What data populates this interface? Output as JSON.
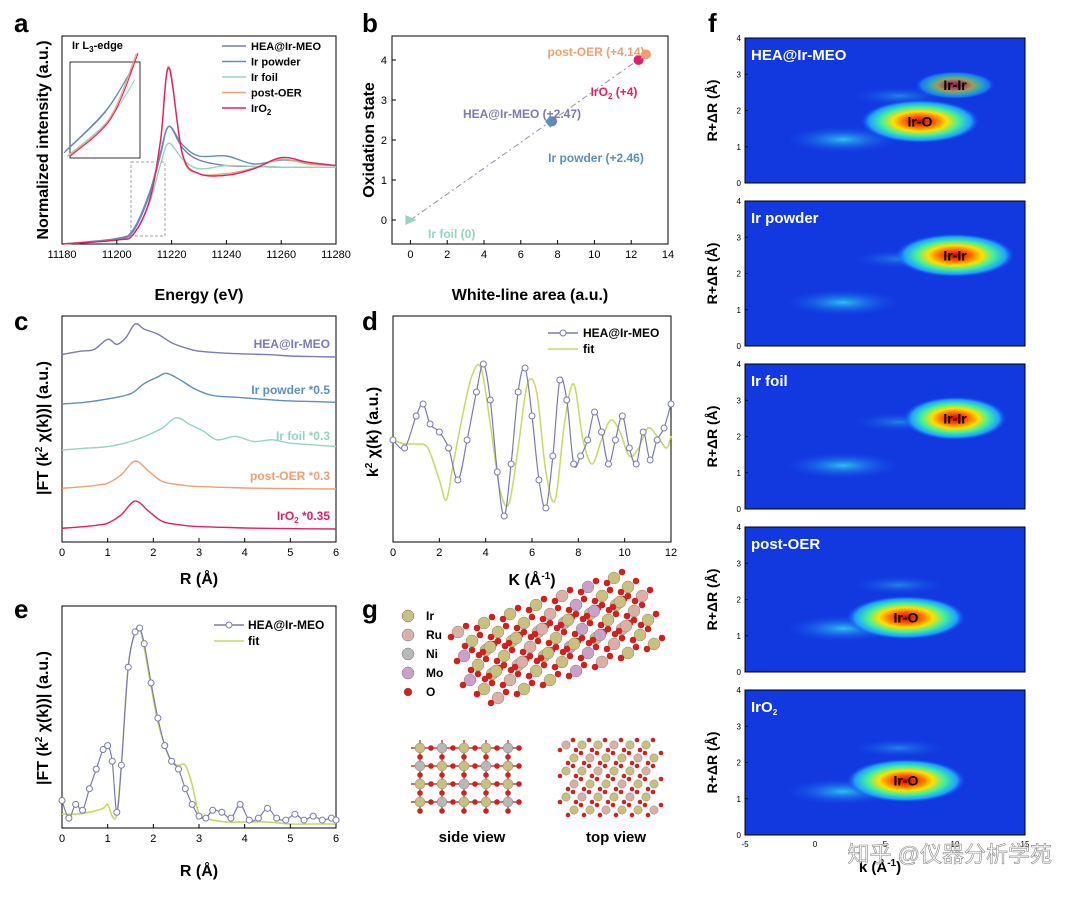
{
  "panel_letters": [
    "a",
    "b",
    "c",
    "d",
    "e",
    "f",
    "g"
  ],
  "watermark": "知乎 @仪器分析学苑",
  "chart_data": [
    {
      "id": "a",
      "type": "line",
      "xlabel": "Energy (eV)",
      "ylabel": "Normalized intensity (a.u.)",
      "xlim": [
        11180,
        11280
      ],
      "xticks": [
        11180,
        11200,
        11220,
        11240,
        11260,
        11280
      ],
      "inset_label_main": "Ir L",
      "inset_label_sub": "3",
      "inset_label_tail": "-edge",
      "legend": [
        "HEA@Ir-MEO",
        "Ir powder",
        "Ir foil",
        "post-OER",
        "IrO2"
      ],
      "legend_display": [
        {
          "main": "HEA@Ir-MEO",
          "sub": ""
        },
        {
          "main": "Ir powder",
          "sub": ""
        },
        {
          "main": "Ir foil",
          "sub": ""
        },
        {
          "main": "post-OER",
          "sub": ""
        },
        {
          "main": "IrO",
          "sub": "2"
        }
      ],
      "series": [
        {
          "name": "HEA@Ir-MEO",
          "color": "#7a7ab8",
          "peak": 1.47,
          "x": [
            11180,
            11200,
            11206,
            11212,
            11216,
            11219,
            11224,
            11230,
            11240,
            11250,
            11260,
            11270,
            11280
          ],
          "y": [
            0.0,
            0.06,
            0.16,
            0.62,
            1.12,
            1.47,
            1.2,
            1.05,
            0.98,
            0.97,
            0.96,
            0.96,
            0.96
          ]
        },
        {
          "name": "Ir powder",
          "color": "#5b8fc0",
          "x": [
            11180,
            11200,
            11206,
            11212,
            11216,
            11219,
            11224,
            11230,
            11240,
            11250,
            11260,
            11270,
            11280
          ],
          "y": [
            0.0,
            0.07,
            0.18,
            0.65,
            1.15,
            1.47,
            1.24,
            1.1,
            1.1,
            1.0,
            1.05,
            1.02,
            0.98
          ]
        },
        {
          "name": "Ir foil",
          "color": "#93d5be",
          "x": [
            11180,
            11200,
            11206,
            11212,
            11216,
            11219,
            11224,
            11230,
            11240,
            11250,
            11260,
            11270,
            11280
          ],
          "y": [
            0.0,
            0.05,
            0.12,
            0.52,
            1.0,
            1.26,
            1.06,
            0.94,
            0.98,
            0.97,
            0.96,
            0.96,
            0.96
          ]
        },
        {
          "name": "post-OER",
          "color": "#f0a070",
          "x": [
            11180,
            11200,
            11206,
            11212,
            11216,
            11219,
            11224,
            11230,
            11240,
            11250,
            11260,
            11270,
            11280
          ],
          "y": [
            0.0,
            0.05,
            0.12,
            0.55,
            1.3,
            2.22,
            1.1,
            0.88,
            0.88,
            0.95,
            1.06,
            1.0,
            0.98
          ]
        },
        {
          "name": "IrO2",
          "color": "#e0206a",
          "x": [
            11180,
            11200,
            11206,
            11212,
            11216,
            11219,
            11224,
            11230,
            11240,
            11250,
            11260,
            11270,
            11280
          ],
          "y": [
            0.0,
            0.05,
            0.12,
            0.55,
            1.3,
            2.2,
            1.12,
            0.88,
            0.86,
            0.94,
            1.08,
            1.02,
            0.98
          ]
        }
      ]
    },
    {
      "id": "b",
      "type": "scatter",
      "xlabel": "White-line area (a.u.)",
      "ylabel": "Oxidation state",
      "xlim": [
        -1,
        14
      ],
      "ylim": [
        -0.6,
        4.6
      ],
      "xticks": [
        0,
        2,
        4,
        6,
        8,
        10,
        12,
        14
      ],
      "yticks": [
        0,
        1,
        2,
        3,
        4
      ],
      "points": [
        {
          "label": "Ir foil (0)",
          "x": 0.0,
          "y": 0.0,
          "color": "#93d5be",
          "marker": "triangle"
        },
        {
          "label": "HEA@Ir-MEO (+2.47)",
          "x": 7.7,
          "y": 2.47,
          "color": "#7a7ab8",
          "marker": "circle"
        },
        {
          "label": "Ir powder (+2.46)",
          "x": 7.6,
          "y": 2.46,
          "color": "#5b8fc0",
          "marker": "diamond"
        },
        {
          "label": "IrO2 (+4)",
          "x": 12.4,
          "y": 4.0,
          "color": "#e0206a",
          "marker": "circle"
        },
        {
          "label": "post-OER (+4.14)",
          "x": 12.8,
          "y": 4.14,
          "color": "#f0a070",
          "marker": "circle"
        }
      ],
      "fit_line": {
        "x": [
          0,
          12.8
        ],
        "y": [
          0,
          4.14
        ]
      },
      "label_display": [
        {
          "main": "Ir foil (0)",
          "sub": "",
          "tail": ""
        },
        {
          "main": "HEA@Ir-MEO (+2.47)",
          "sub": "",
          "tail": ""
        },
        {
          "main": "Ir powder (+2.46)",
          "sub": "",
          "tail": ""
        },
        {
          "main": "IrO",
          "sub": "2",
          "tail": " (+4)"
        },
        {
          "main": "post-OER (+4.14)",
          "sub": "",
          "tail": ""
        }
      ]
    },
    {
      "id": "c",
      "type": "line",
      "xlabel": "R (Å)",
      "ylabel": "|FT (k2 χ(k))| (a.u.)",
      "ylabel_display": {
        "pre": "|FT (k",
        "sup": "2",
        "post": " χ(k))| (a.u.)"
      },
      "xlim": [
        0,
        6
      ],
      "xticks": [
        0,
        1,
        2,
        3,
        4,
        5,
        6
      ],
      "series": [
        {
          "name": "HEA@Ir-MEO",
          "color": "#7a7ab8",
          "offset": 4,
          "x": [
            0,
            0.4,
            0.7,
            1.0,
            1.2,
            1.4,
            1.6,
            1.8,
            2.1,
            2.4,
            2.7,
            3.0,
            3.5,
            4.0,
            4.5,
            5.0,
            5.5,
            6.0
          ],
          "y": [
            0.1,
            0.2,
            0.25,
            0.55,
            0.4,
            0.6,
            1.0,
            0.85,
            0.7,
            0.45,
            0.3,
            0.2,
            0.15,
            0.12,
            0.1,
            0.06,
            0.04,
            0.03
          ]
        },
        {
          "name": "Ir powder *0.5",
          "color": "#5b8fc0",
          "offset": 3,
          "x": [
            0,
            0.5,
            1.0,
            1.5,
            1.8,
            2.1,
            2.3,
            2.6,
            2.9,
            3.3,
            3.8,
            4.3,
            4.8,
            5.3,
            6.0
          ],
          "y": [
            0.0,
            0.05,
            0.15,
            0.3,
            0.6,
            0.8,
            0.9,
            0.7,
            0.45,
            0.25,
            0.2,
            0.15,
            0.1,
            0.08,
            0.05
          ]
        },
        {
          "name": "Ir foil *0.3",
          "color": "#93d5be",
          "offset": 2,
          "x": [
            0,
            0.5,
            1.0,
            1.5,
            1.9,
            2.2,
            2.5,
            2.8,
            3.1,
            3.4,
            3.8,
            4.2,
            4.6,
            5.0,
            5.5,
            6.0
          ],
          "y": [
            0.0,
            0.05,
            0.1,
            0.25,
            0.45,
            0.65,
            0.95,
            0.75,
            0.55,
            0.3,
            0.4,
            0.25,
            0.3,
            0.2,
            0.15,
            0.1
          ]
        },
        {
          "name": "post-OER *0.3",
          "color": "#f0a070",
          "offset": 1,
          "x": [
            0,
            0.5,
            0.8,
            1.0,
            1.3,
            1.6,
            1.9,
            2.2,
            2.6,
            3.0,
            3.5,
            4.0,
            5.0,
            6.0
          ],
          "y": [
            0.05,
            0.1,
            0.15,
            0.2,
            0.45,
            0.85,
            0.55,
            0.25,
            0.15,
            0.1,
            0.08,
            0.06,
            0.04,
            0.03
          ]
        },
        {
          "name": "IrO2 *0.35",
          "color": "#e0206a",
          "offset": 0,
          "x": [
            0,
            0.5,
            0.8,
            1.0,
            1.3,
            1.6,
            1.9,
            2.2,
            2.6,
            3.0,
            3.5,
            4.0,
            5.0,
            6.0
          ],
          "y": [
            0.05,
            0.1,
            0.15,
            0.2,
            0.45,
            0.85,
            0.55,
            0.25,
            0.15,
            0.1,
            0.08,
            0.06,
            0.04,
            0.03
          ]
        }
      ],
      "labels_display": [
        {
          "main": "HEA@Ir-MEO",
          "sub": "",
          "tail": ""
        },
        {
          "main": "Ir powder *0.5",
          "sub": "",
          "tail": ""
        },
        {
          "main": "Ir foil *0.3",
          "sub": "",
          "tail": ""
        },
        {
          "main": "post-OER *0.3",
          "sub": "",
          "tail": ""
        },
        {
          "main": "IrO",
          "sub": "2",
          "tail": " *0.35"
        }
      ]
    },
    {
      "id": "d",
      "type": "line",
      "xlabel": "K (Å-1)",
      "ylabel": "k2 χ(k) (a.u.)",
      "xlabel_display": {
        "pre": "K (Å",
        "sup": "-1",
        "post": ")"
      },
      "ylabel_display": {
        "pre": "k",
        "sup": "2",
        "post": " χ(k) (a.u.)"
      },
      "xlim": [
        0,
        12
      ],
      "xticks": [
        0,
        2,
        4,
        6,
        8,
        10,
        12
      ],
      "legend": [
        "HEA@Ir-MEO",
        "fit"
      ],
      "series": [
        {
          "name": "HEA@Ir-MEO",
          "color": "#7a7ab8",
          "marker": "open-circle",
          "x": [
            0,
            0.5,
            1.0,
            1.3,
            1.6,
            2.0,
            2.4,
            2.8,
            3.2,
            3.6,
            3.9,
            4.2,
            4.5,
            4.8,
            5.1,
            5.4,
            5.7,
            6.0,
            6.3,
            6.6,
            6.9,
            7.2,
            7.5,
            7.8,
            8.1,
            8.4,
            8.7,
            9.0,
            9.3,
            9.6,
            9.9,
            10.2,
            10.5,
            10.8,
            11.1,
            11.4,
            11.7,
            12.0
          ],
          "y": [
            0.0,
            -0.1,
            0.3,
            0.45,
            0.2,
            0.1,
            -0.1,
            -0.5,
            0.0,
            0.6,
            0.95,
            0.5,
            -0.4,
            -0.95,
            -0.3,
            0.6,
            0.9,
            0.3,
            -0.5,
            -0.85,
            -0.2,
            0.75,
            0.5,
            -0.3,
            -0.2,
            0.0,
            0.35,
            0.1,
            -0.3,
            0.0,
            0.3,
            -0.1,
            -0.3,
            0.1,
            -0.25,
            0.0,
            0.15,
            0.45
          ]
        },
        {
          "name": "fit",
          "color": "#c8d860",
          "x": [
            0,
            0.5,
            1.0,
            1.5,
            2.0,
            2.3,
            2.6,
            3.0,
            3.4,
            3.8,
            4.2,
            4.6,
            5.0,
            5.4,
            5.8,
            6.2,
            6.6,
            7.0,
            7.4,
            7.8,
            8.2,
            8.6,
            9.0,
            9.4,
            9.8,
            10.2,
            10.6,
            11.0,
            11.4,
            11.8,
            12.0
          ],
          "y": [
            0.0,
            -0.05,
            -0.05,
            -0.1,
            -0.5,
            -0.75,
            -0.3,
            0.3,
            0.8,
            0.9,
            0.2,
            -0.6,
            -0.8,
            -0.1,
            0.7,
            0.6,
            -0.4,
            -0.75,
            0.2,
            0.7,
            0.0,
            -0.3,
            0.0,
            0.25,
            0.1,
            -0.2,
            -0.1,
            0.15,
            0.05,
            -0.1,
            0.05
          ]
        }
      ]
    },
    {
      "id": "e",
      "type": "line",
      "xlabel": "R (Å)",
      "ylabel": "|FT (k2 χ(k))| (a.u.)",
      "ylabel_display": {
        "pre": "|FT (k",
        "sup": "2",
        "post": " χ(k))| (a.u.)"
      },
      "xlim": [
        0,
        6
      ],
      "xticks": [
        0,
        1,
        2,
        3,
        4,
        5,
        6
      ],
      "legend": [
        "HEA@Ir-MEO",
        "fit"
      ],
      "series": [
        {
          "name": "HEA@Ir-MEO",
          "color": "#7a7ab8",
          "marker": "open-circle",
          "x": [
            0,
            0.15,
            0.3,
            0.45,
            0.6,
            0.75,
            0.9,
            1.0,
            1.1,
            1.2,
            1.3,
            1.45,
            1.6,
            1.7,
            1.8,
            1.95,
            2.1,
            2.25,
            2.4,
            2.55,
            2.7,
            2.85,
            3.0,
            3.15,
            3.3,
            3.5,
            3.7,
            3.9,
            4.1,
            4.3,
            4.5,
            4.7,
            4.9,
            5.1,
            5.3,
            5.5,
            5.7,
            5.9,
            6.0
          ],
          "y": [
            0.12,
            0.03,
            0.1,
            0.07,
            0.18,
            0.28,
            0.38,
            0.4,
            0.32,
            0.06,
            0.3,
            0.8,
            0.98,
            1.0,
            0.92,
            0.72,
            0.54,
            0.4,
            0.32,
            0.28,
            0.18,
            0.1,
            0.04,
            0.03,
            0.07,
            0.06,
            0.03,
            0.1,
            0.02,
            0.03,
            0.08,
            0.03,
            0.02,
            0.05,
            0.02,
            0.04,
            0.02,
            0.03,
            0.02
          ]
        },
        {
          "name": "fit",
          "color": "#c8d860",
          "x": [
            0,
            0.3,
            0.6,
            0.9,
            1.0,
            1.1,
            1.2,
            1.3,
            1.45,
            1.6,
            1.7,
            1.8,
            1.95,
            2.1,
            2.25,
            2.4,
            2.55,
            2.7,
            2.85,
            3.0,
            3.15,
            3.3,
            3.6,
            4.0,
            4.5,
            5.0,
            5.5,
            6.0
          ],
          "y": [
            0.05,
            0.05,
            0.06,
            0.08,
            0.1,
            0.04,
            0.05,
            0.3,
            0.8,
            0.98,
            1.0,
            0.9,
            0.7,
            0.52,
            0.4,
            0.32,
            0.3,
            0.3,
            0.2,
            0.05,
            0.03,
            0.02,
            0.01,
            0.01,
            0.01,
            0.0,
            0.0,
            0.0
          ]
        }
      ]
    },
    {
      "id": "f",
      "type": "heatmap",
      "xlabel": "k (Å-1)",
      "ylabel": "R+ΔR (Å)",
      "xlabel_display": {
        "pre": "k (Å",
        "sup": "-1",
        "post": ")"
      },
      "xlim": [
        -5,
        15
      ],
      "xticks": [
        -5,
        0,
        5,
        10,
        15
      ],
      "ylim": [
        0,
        4
      ],
      "yticks": [
        0,
        1,
        2,
        3,
        4
      ],
      "maps": [
        {
          "title": "HEA@Ir-MEO",
          "title_sub": "",
          "annotations": [
            {
              "text": "Ir-O",
              "k": 7.5,
              "r": 1.7
            },
            {
              "text": "Ir-Ir",
              "k": 10.0,
              "r": 2.7
            }
          ]
        },
        {
          "title": "Ir powder",
          "title_sub": "",
          "annotations": [
            {
              "text": "Ir-Ir",
              "k": 10.0,
              "r": 2.5
            }
          ]
        },
        {
          "title": "Ir foil",
          "title_sub": "",
          "annotations": [
            {
              "text": "Ir-Ir",
              "k": 10.0,
              "r": 2.5
            }
          ]
        },
        {
          "title": "post-OER",
          "title_sub": "",
          "annotations": [
            {
              "text": "Ir-O",
              "k": 6.5,
              "r": 1.5
            }
          ]
        },
        {
          "title": "IrO",
          "title_sub": "2",
          "annotations": [
            {
              "text": "Ir-O",
              "k": 6.5,
              "r": 1.5
            }
          ]
        }
      ]
    }
  ],
  "panel_g": {
    "legend": [
      {
        "label": "Ir",
        "color": "#c8c080"
      },
      {
        "label": "Ru",
        "color": "#d8b0a8"
      },
      {
        "label": "Ni",
        "color": "#b8b8b8"
      },
      {
        "label": "Mo",
        "color": "#c8a0c8"
      },
      {
        "label": "O",
        "color": "#d02020"
      }
    ],
    "side_view_label": "side view",
    "top_view_label": "top view"
  }
}
